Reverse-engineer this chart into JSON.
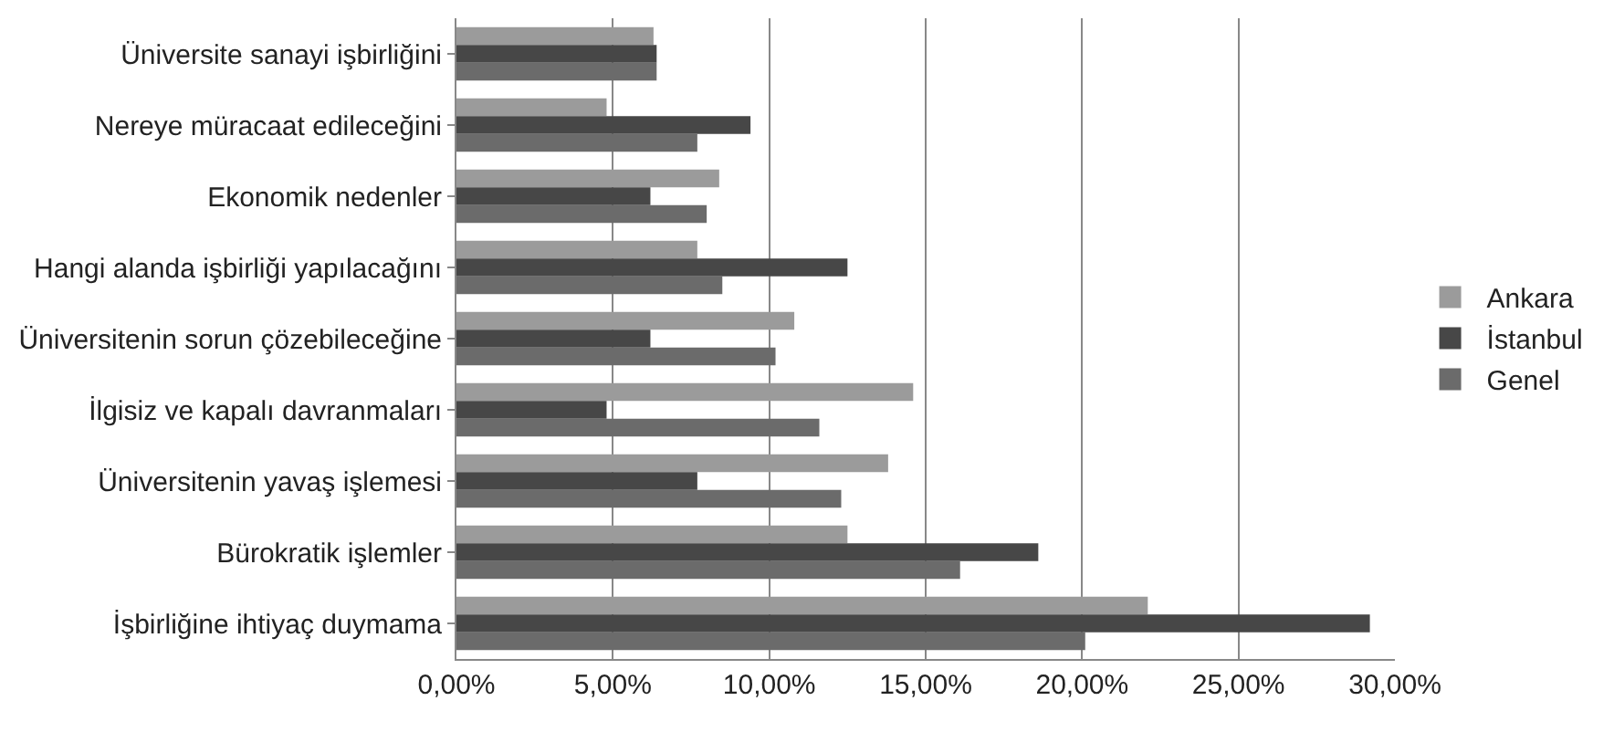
{
  "chart_data": {
    "type": "bar",
    "orientation": "horizontal",
    "categories": [
      "Üniversite sanayi işbirliğini",
      "Nereye müracaat edileceğini",
      "Ekonomik nedenler",
      "Hangi alanda işbirliği yapılacağını",
      "Üniversitenin sorun çözebileceğine",
      "İlgisiz ve kapalı davranmaları",
      "Üniversitenin yavaş işlemesi",
      "Bürokratik işlemler",
      "İşbirliğine ihtiyaç duymama"
    ],
    "series": [
      {
        "name": "Ankara",
        "color": "#9b9b9b",
        "values": [
          0.063,
          0.048,
          0.084,
          0.077,
          0.108,
          0.146,
          0.138,
          0.125,
          0.221
        ]
      },
      {
        "name": "İstanbul",
        "color": "#474747",
        "values": [
          0.064,
          0.094,
          0.062,
          0.125,
          0.062,
          0.048,
          0.077,
          0.186,
          0.292
        ]
      },
      {
        "name": "Genel",
        "color": "#6b6b6b",
        "values": [
          0.064,
          0.077,
          0.08,
          0.085,
          0.102,
          0.116,
          0.123,
          0.161,
          0.201
        ]
      }
    ],
    "xlim": [
      0,
      0.3
    ],
    "xticks": [
      {
        "value": 0,
        "label": "0,00%"
      },
      {
        "value": 0.05,
        "label": "5,00%"
      },
      {
        "value": 0.1,
        "label": "10,00%"
      },
      {
        "value": 0.15,
        "label": "15,00%"
      },
      {
        "value": 0.2,
        "label": "20,00%"
      },
      {
        "value": 0.25,
        "label": "25,00%"
      },
      {
        "value": 0.3,
        "label": "30,00%"
      }
    ],
    "grid": "x",
    "legend": "right"
  }
}
